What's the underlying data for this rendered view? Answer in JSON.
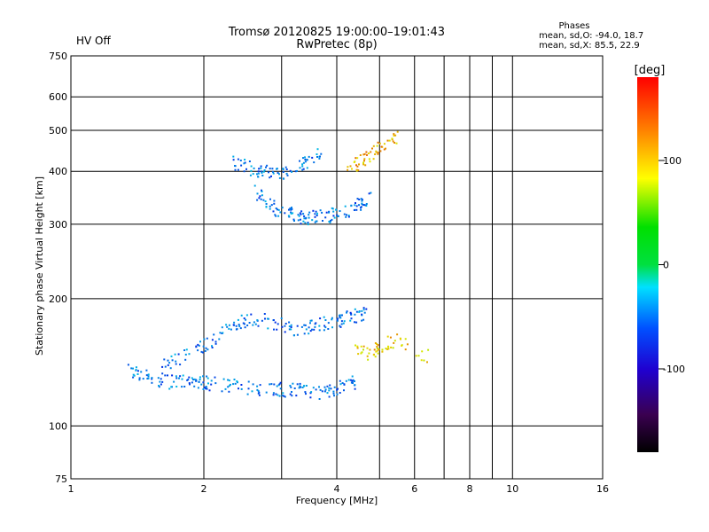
{
  "status": {
    "hv_label": "HV Off",
    "hv_color": "#cc0000"
  },
  "header": {
    "title_line1": "Tromsø 20120825 19:00:00–19:01:43",
    "title_line2": "RwPretec (8p)"
  },
  "stats": {
    "heading": "Phases",
    "line_o": "mean, sd,O: -94.0, 18.7",
    "line_x": "mean, sd,X:  85.5, 22.9"
  },
  "colorbar": {
    "label": "[deg]",
    "ticks": [
      "100",
      "0",
      "-100"
    ],
    "tick_values": [
      100,
      0,
      -100
    ],
    "range": [
      -180,
      180
    ]
  },
  "chart_data": {
    "type": "scatter",
    "title": "Tromsø 20120825 19:00:00–19:01:43",
    "subtitle": "RwPretec (8p)",
    "xlabel": "Frequency [MHz]",
    "ylabel": "Stationary phase Virtual Height [km]",
    "xscale": "log",
    "yscale": "log",
    "xlim": [
      1,
      16
    ],
    "ylim": [
      75,
      750
    ],
    "xticks": [
      1,
      2,
      4,
      6,
      8,
      10,
      16
    ],
    "xtick_labels": [
      "1",
      "2",
      "4",
      "6",
      "8",
      "10",
      "16"
    ],
    "yticks": [
      75,
      100,
      200,
      300,
      400,
      500,
      600,
      750
    ],
    "ytick_labels": [
      "75",
      "100",
      "200",
      "300",
      "400",
      "500",
      "600",
      "750"
    ],
    "vgrid_extra": [
      3,
      5,
      7,
      9
    ],
    "grid": true,
    "color_scale": "phase [deg], rainbow, -180 to 180",
    "series": [
      {
        "values_x": [
          1.35,
          1.45,
          1.6,
          1.75,
          1.9,
          2.0,
          2.2,
          2.4,
          2.7,
          3.0,
          3.3,
          3.6,
          3.9,
          4.2,
          4.4
        ],
        "values_y": [
          135,
          132,
          128,
          127,
          126,
          127,
          125,
          124,
          123,
          122,
          121,
          120,
          122,
          124,
          127
        ],
        "phase": -100
      },
      {
        "values_x": [
          1.6,
          1.8,
          2.0,
          2.2,
          2.4,
          2.6,
          2.9,
          3.2,
          3.5,
          3.8,
          4.1,
          4.4,
          4.7
        ],
        "values_y": [
          140,
          145,
          155,
          165,
          175,
          180,
          175,
          170,
          172,
          175,
          178,
          182,
          186
        ],
        "phase": -100
      },
      {
        "values_x": [
          2.6,
          2.8,
          3.0,
          3.2,
          3.4,
          3.6,
          3.9,
          4.2,
          4.5,
          4.8
        ],
        "values_y": [
          360,
          335,
          320,
          315,
          312,
          312,
          315,
          322,
          335,
          350
        ],
        "phase": -100
      },
      {
        "values_x": [
          2.3,
          2.5,
          2.7,
          2.9,
          3.1,
          3.4,
          3.7
        ],
        "values_y": [
          420,
          410,
          400,
          395,
          395,
          420,
          450
        ],
        "phase": -100
      },
      {
        "values_x": [
          4.2,
          4.5,
          4.8,
          5.1,
          5.5
        ],
        "values_y": [
          400,
          420,
          440,
          460,
          480
        ],
        "phase": 120
      },
      {
        "values_x": [
          4.4,
          4.8,
          5.0,
          5.5,
          6.5
        ],
        "values_y": [
          150,
          148,
          155,
          160,
          145
        ],
        "phase": 110
      }
    ]
  }
}
